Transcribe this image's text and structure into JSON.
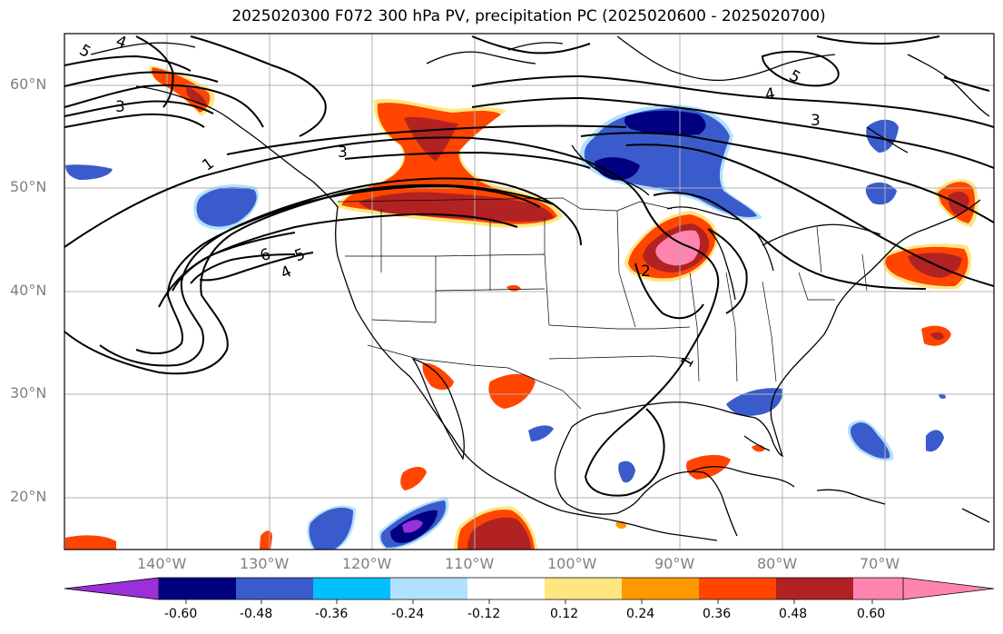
{
  "title": "2025020300 F072 300 hPa PV, precipitation PC (2025020600 - 2025020700)",
  "lat_labels": [
    "60°N",
    "50°N",
    "40°N",
    "30°N",
    "20°N"
  ],
  "lon_labels": [
    "140°W",
    "130°W",
    "120°W",
    "110°W",
    "100°W",
    "90°W",
    "80°W",
    "70°W"
  ],
  "colorbar": {
    "ticks": [
      "-0.60",
      "-0.48",
      "-0.36",
      "-0.24",
      "-0.12",
      "0.12",
      "0.24",
      "0.36",
      "0.48",
      "0.60"
    ],
    "colors": [
      "#9b30d9",
      "#000080",
      "#3a5bcc",
      "#00bfff",
      "#b0e2ff",
      "#ffffff",
      "#ffe680",
      "#ff9900",
      "#ff4500",
      "#b22222",
      "#ff85b0"
    ]
  },
  "pv_contour_labels": [
    "1",
    "1",
    "2",
    "3",
    "3",
    "3",
    "4",
    "4",
    "4",
    "5",
    "5",
    "5",
    "6"
  ],
  "colors": {
    "grid": "#b0b0b0",
    "coast": "#000000",
    "contour": "#000000",
    "tick_label": "#808080"
  }
}
